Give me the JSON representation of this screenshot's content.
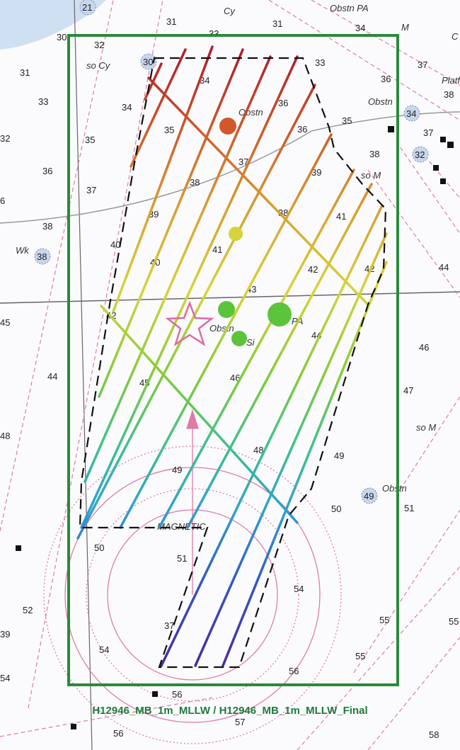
{
  "survey": {
    "caption": "H12946_MB_1m_MLLW / H12946_MB_1m_MLLW_Final",
    "boundary_color": "#2a8a3a",
    "polygon_color": "#111111",
    "star_color": "#e06aa0"
  },
  "chart_labels": [
    {
      "id": "obstn-pa-top",
      "text": "Obstn PA"
    },
    {
      "id": "cy-top",
      "text": "Cy"
    },
    {
      "id": "m-top",
      "text": "M"
    },
    {
      "id": "c-top",
      "text": "C"
    },
    {
      "id": "so-cy",
      "text": "so Cy"
    },
    {
      "id": "obstn-1",
      "text": "Obstn"
    },
    {
      "id": "obstn-2",
      "text": "Obstn"
    },
    {
      "id": "obstn-3",
      "text": "Obstn"
    },
    {
      "id": "obstn-4",
      "text": "Obstn"
    },
    {
      "id": "so-m-1",
      "text": "so M"
    },
    {
      "id": "so-m-2",
      "text": "so M"
    },
    {
      "id": "pa",
      "text": "PA"
    },
    {
      "id": "si",
      "text": "Si"
    },
    {
      "id": "wk",
      "text": "Wk"
    },
    {
      "id": "plat",
      "text": "Platf"
    },
    {
      "id": "magnetic",
      "text": "MAGNETIC"
    }
  ],
  "buoy_numbers": [
    "21",
    "34",
    "32",
    "38",
    "49",
    "30"
  ],
  "soundings": [
    "31",
    "31",
    "33",
    "34",
    "32",
    "30",
    "31",
    "33",
    "33",
    "32",
    "36",
    "37",
    "34",
    "35",
    "36",
    "37",
    "38",
    "6",
    "34",
    "35",
    "35",
    "36",
    "37",
    "37",
    "38",
    "36",
    "38",
    "39",
    "39",
    "38",
    "40",
    "40",
    "41",
    "41",
    "42",
    "42",
    "43",
    "42",
    "44",
    "44",
    "44",
    "45",
    "45",
    "46",
    "46",
    "47",
    "48",
    "48",
    "49",
    "49",
    "50",
    "50",
    "51",
    "51",
    "52",
    "54",
    "54",
    "55",
    "55",
    "56",
    "56",
    "56",
    "57",
    "58",
    "54",
    "55",
    "38",
    "39",
    "37"
  ]
}
